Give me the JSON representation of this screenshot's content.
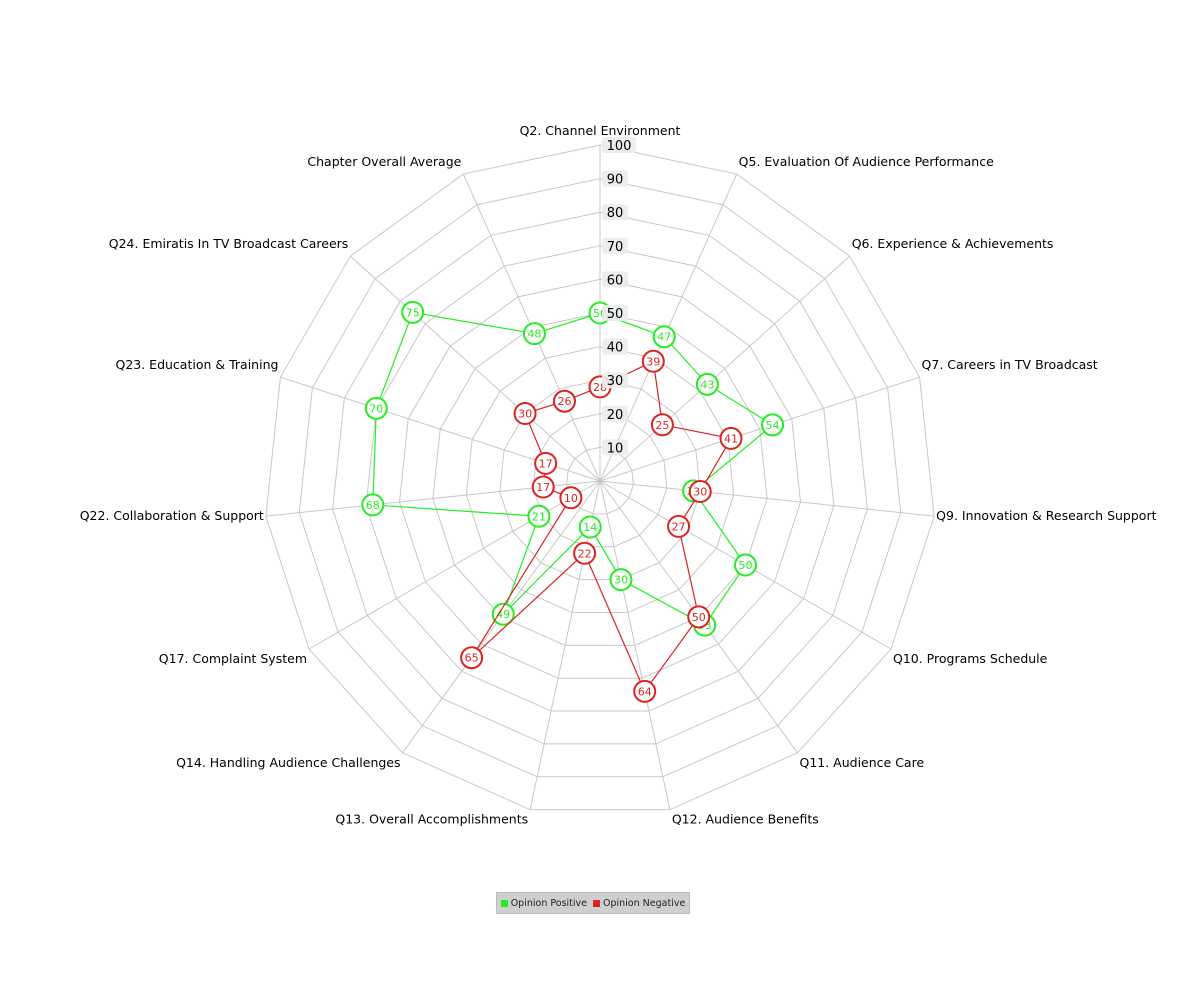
{
  "chart_data": {
    "type": "radar",
    "title": "",
    "categories": [
      "Q2. Channel Environment",
      "Q5. Evaluation Of Audience Performance",
      "Q6. Experience & Achievements",
      "Q7. Careers in TV Broadcast",
      "Q9. Innovation & Research Support",
      "Q10. Programs Schedule",
      "Q11. Audience Care",
      "Q12. Audience Benefits",
      "Q13. Overall Accomplishments",
      "Q14. Handling Audience Challenges",
      "Q17. Complaint System",
      "Q22. Collaboration & Support",
      "Q23. Education & Training",
      "Q24. Emiratis In TV Broadcast Careers",
      "Chapter Overall Average"
    ],
    "series": [
      {
        "name": "Opinion Positive",
        "color": "#22ee22",
        "values": [
          50,
          47,
          43,
          54,
          28,
          50,
          53,
          30,
          14,
          49,
          21,
          68,
          70,
          75,
          48
        ]
      },
      {
        "name": "Opinion Negative",
        "color": "#dd2222",
        "values": [
          28,
          39,
          25,
          41,
          30,
          27,
          50,
          64,
          22,
          65,
          10,
          17,
          17,
          30,
          26
        ]
      }
    ],
    "r_axis": {
      "range": [
        0,
        100
      ],
      "ticks": [
        10,
        20,
        30,
        40,
        50,
        60,
        70,
        80,
        90,
        100
      ]
    },
    "grid": true,
    "legend": "bottom"
  }
}
